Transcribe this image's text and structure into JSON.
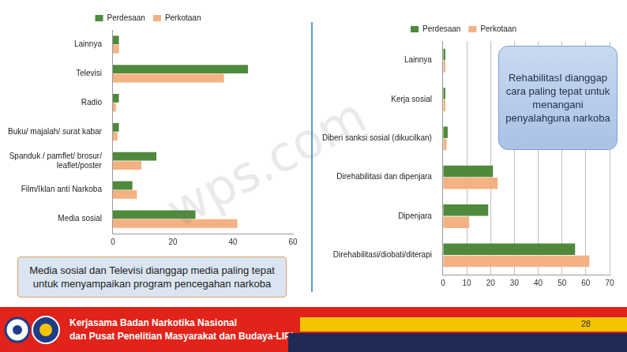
{
  "chart_data": [
    {
      "type": "bar",
      "orientation": "horizontal",
      "categories": [
        "Lainnya",
        "Televisi",
        "Radio",
        "Buku/ majalah/ surat kabar",
        "Spanduk / pamflet/ brosur/ leaflet/poster",
        "Film/Iklan anti Narkoba",
        "Media sosial"
      ],
      "series": [
        {
          "name": "Perdesaan",
          "color": "#4f8a3c",
          "values": [
            2,
            45,
            2,
            2,
            14.5,
            6.5,
            27.5
          ]
        },
        {
          "name": "Perkotaan",
          "color": "#f4b183",
          "values": [
            2,
            37,
            1,
            1.5,
            9.5,
            8,
            41.5
          ]
        }
      ],
      "xlim": [
        0,
        60
      ],
      "xticks": [
        0,
        20,
        40,
        60
      ],
      "grid": false,
      "legend": "top"
    },
    {
      "type": "bar",
      "orientation": "horizontal",
      "categories": [
        "Lainnya",
        "Kerja sosial",
        "Diberi sanksi sosial (dikucilkan)",
        "Direhabilitasi dan dipenjara",
        "Dipenjara",
        "Direhabilitasi/diobati/diterapi"
      ],
      "series": [
        {
          "name": "Perdesaan",
          "color": "#4f8a3c",
          "values": [
            1,
            1,
            2,
            21,
            19,
            55.5
          ]
        },
        {
          "name": "Perkotaan",
          "color": "#f4b183",
          "values": [
            1,
            1,
            1.5,
            23,
            11,
            61.5
          ]
        }
      ],
      "xlim": [
        0,
        70
      ],
      "xticks": [
        0,
        10,
        20,
        30,
        40,
        50,
        60,
        70
      ],
      "grid": true,
      "legend": "top"
    }
  ],
  "callouts": [
    "Media sosial dan Televisi dianggap media paling tepat untuk menyampaikan program pencegahan narkoba",
    "RehabilitasI dianggap cara paling tepat untuk menangani penyalahguna narkoba"
  ],
  "watermark": "wps.com",
  "footer": {
    "lines": [
      "Kerjasama Badan Narkotika Nasional",
      "dan Pusat Penelitian Masyarakat dan Budaya-LIPI"
    ],
    "page": "28"
  }
}
